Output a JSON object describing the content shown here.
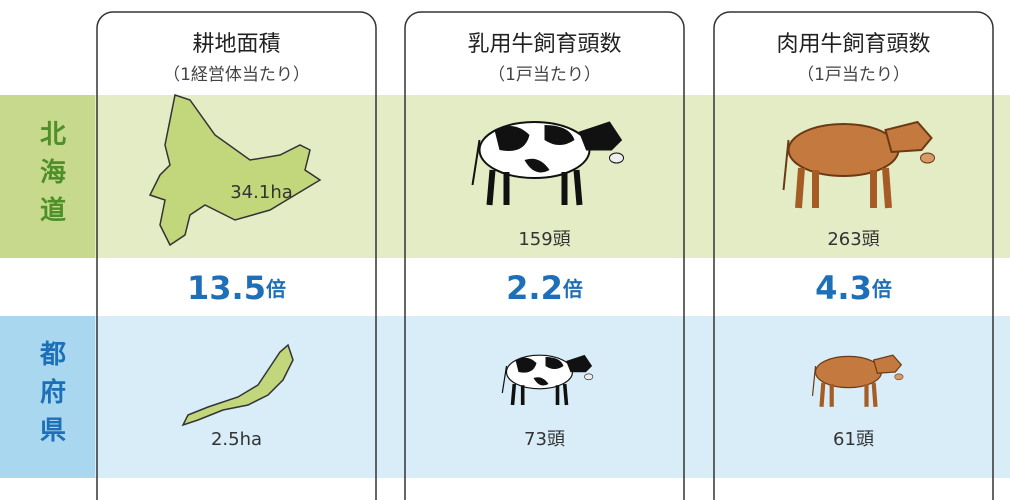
{
  "columns": [
    {
      "title": "耕地面積",
      "subtitle": "（1経営体当たり）",
      "hokkaido": "34.1ha",
      "ratio": "13.5",
      "ratio_unit": "倍",
      "prefectures": "2.5ha"
    },
    {
      "title": "乳用牛飼育頭数",
      "subtitle": "（1戸当たり）",
      "hokkaido": "159頭",
      "ratio": "2.2",
      "ratio_unit": "倍",
      "prefectures": "73頭"
    },
    {
      "title": "肉用牛飼育頭数",
      "subtitle": "（1戸当たり）",
      "hokkaido": "263頭",
      "ratio": "4.3",
      "ratio_unit": "倍",
      "prefectures": "61頭"
    }
  ],
  "rows": {
    "hokkaido": "北海道",
    "prefectures": "都府県"
  }
}
